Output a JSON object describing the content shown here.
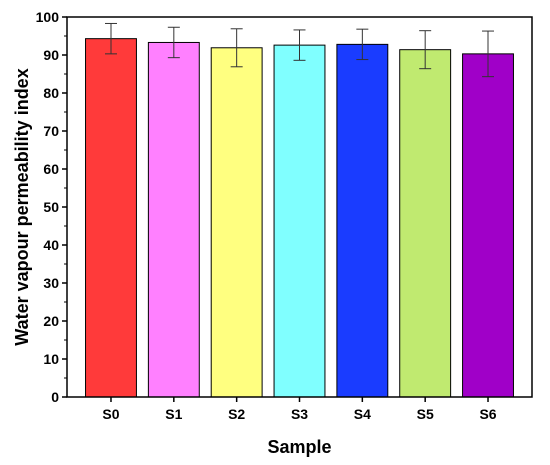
{
  "chart_data": {
    "type": "bar",
    "xlabel": "Sample",
    "ylabel": "Water vapour permeability index",
    "ylim": [
      0,
      100
    ],
    "yticks": [
      0,
      10,
      20,
      30,
      40,
      50,
      60,
      70,
      80,
      90,
      100
    ],
    "grid": false,
    "categories": [
      "S0",
      "S1",
      "S2",
      "S3",
      "S4",
      "S5",
      "S6"
    ],
    "values": [
      94.3,
      93.3,
      91.9,
      92.6,
      92.8,
      91.4,
      90.3
    ],
    "errors": [
      4.0,
      4.0,
      5.0,
      4.0,
      4.0,
      5.0,
      6.0
    ],
    "colors": [
      "#ff3a3a",
      "#ff80ff",
      "#ffff80",
      "#80ffff",
      "#1a3cff",
      "#c0ea70",
      "#a000c8"
    ]
  }
}
